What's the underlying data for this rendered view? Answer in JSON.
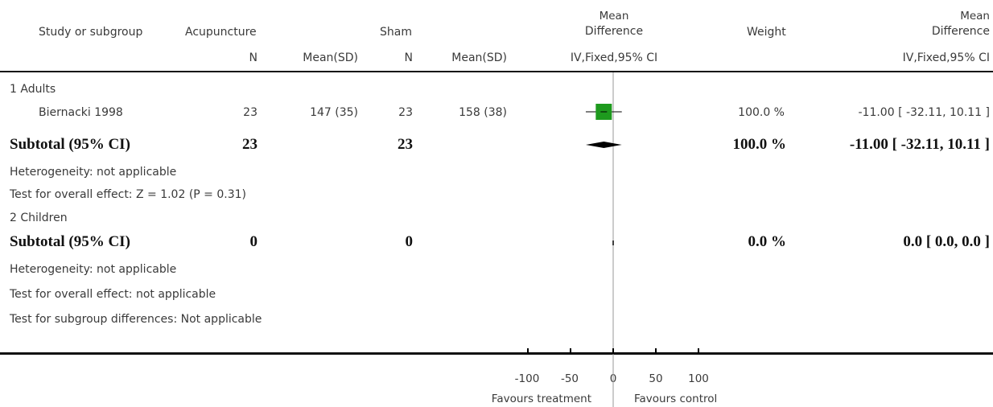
{
  "headers": {
    "study": "Study or subgroup",
    "treatment": "Acupuncture",
    "control": "Sham",
    "md_top": "Mean",
    "md_bottom": "Difference",
    "weight": "Weight",
    "md2_top": "Mean",
    "md2_bottom": "Difference",
    "n": "N",
    "meansd": "Mean(SD)",
    "n2": "N",
    "meansd2": "Mean(SD)",
    "method": "IV,Fixed,95% CI",
    "method2": "IV,Fixed,95% CI"
  },
  "groups": [
    {
      "title": "1 Adults",
      "study": {
        "name": "Biernacki 1998",
        "n1": "23",
        "mean1": "147 (35)",
        "n2": "23",
        "mean2": "158 (38)",
        "weight": "100.0 %",
        "ci": "-11.00 [ -32.11, 10.11 ]"
      },
      "subtotal": {
        "label": "Subtotal (95% CI)",
        "n1": "23",
        "n2": "23",
        "weight": "100.0 %",
        "ci": "-11.00 [ -32.11, 10.11 ]"
      },
      "heterogeneity": "Heterogeneity: not applicable",
      "overall": "Test for overall effect: Z = 1.02 (P = 0.31)"
    },
    {
      "title": "2 Children",
      "subtotal": {
        "label": "Subtotal (95% CI)",
        "n1": "0",
        "n2": "0",
        "weight": "0.0 %",
        "ci": "0.0 [ 0.0, 0.0 ]"
      },
      "heterogeneity": "Heterogeneity: not applicable",
      "overall": "Test for overall effect: not applicable"
    }
  ],
  "subgroup_diff": "Test for subgroup differences: Not applicable",
  "axis": {
    "ticks": [
      "-100",
      "-50",
      "0",
      "50",
      "100"
    ],
    "left_label": "Favours treatment",
    "right_label": "Favours control"
  },
  "chart_data": {
    "type": "forest",
    "xlim": [
      -100,
      100
    ],
    "ticks": [
      -100,
      -50,
      0,
      50,
      100
    ],
    "studies": [
      {
        "name": "Biernacki 1998",
        "estimate": -11.0,
        "lower": -32.11,
        "upper": 10.11,
        "weight": 100.0
      }
    ],
    "subtotals": [
      {
        "group": "1 Adults",
        "estimate": -11.0,
        "lower": -32.11,
        "upper": 10.11
      },
      {
        "group": "2 Children",
        "estimate": 0.0,
        "lower": 0.0,
        "upper": 0.0
      }
    ],
    "colors": {
      "box": "#1e9a1e",
      "diamond": "#000000",
      "line": "#000000",
      "null_line": "#999999"
    }
  }
}
